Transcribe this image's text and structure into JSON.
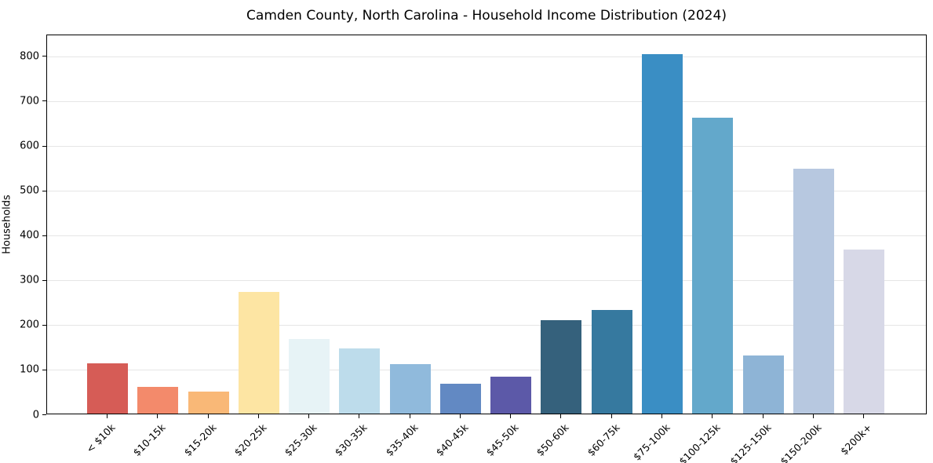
{
  "chart_data": {
    "type": "bar",
    "title": "Camden County, North Carolina - Household Income Distribution (2024)",
    "ylabel": "Households",
    "xlabel": "",
    "ylim": [
      0,
      848
    ],
    "yticks": [
      0,
      100,
      200,
      300,
      400,
      500,
      600,
      700,
      800
    ],
    "grid": "horizontal-light-gray",
    "legend": false,
    "categories": [
      "< $10k",
      "$10-15k",
      "$15-20k",
      "$20-25k",
      "$25-30k",
      "$30-35k",
      "$35-40k",
      "$40-45k",
      "$45-50k",
      "$50-60k",
      "$60-75k",
      "$75-100k",
      "$100-125k",
      "$125-150k",
      "$150-200k",
      "$200k+"
    ],
    "values": [
      112,
      60,
      49,
      271,
      167,
      145,
      111,
      67,
      82,
      208,
      232,
      803,
      660,
      130,
      546,
      367
    ],
    "bar_colors": [
      "#d65c56",
      "#f38a6b",
      "#f9b877",
      "#fde5a3",
      "#e7f3f6",
      "#bddceb",
      "#90badc",
      "#6289c3",
      "#5c59a8",
      "#35617c",
      "#36799f",
      "#3a8ec4",
      "#63a8cb",
      "#8eb4d6",
      "#b7c8e0",
      "#d7d8e7"
    ],
    "colors": {
      "background": "#ffffff",
      "gridline": "#e6e6e6",
      "spine": "#000000",
      "text": "#000000"
    }
  }
}
